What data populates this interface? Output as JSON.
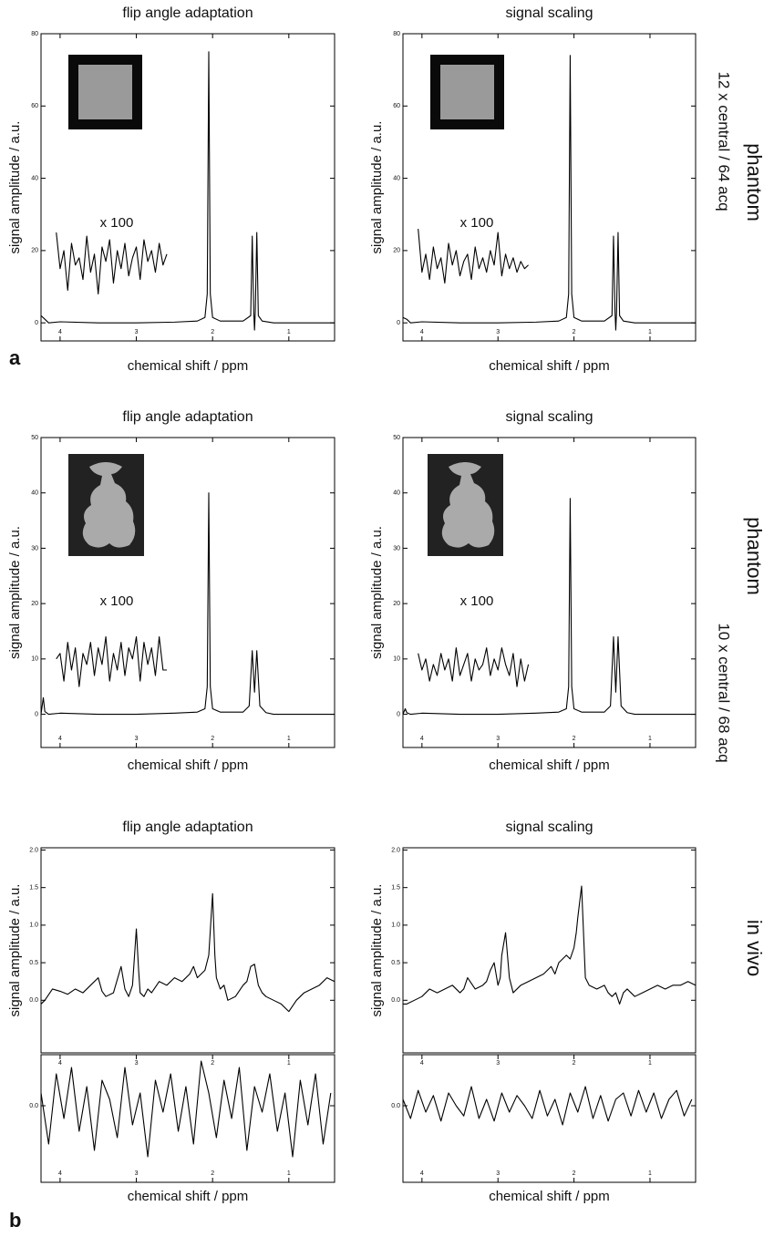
{
  "figure": {
    "panel_labels": [
      "a",
      "b"
    ],
    "row_labels": [
      "phantom",
      "12 x central / 64 acq",
      "phantom",
      "10 x central / 68 acq",
      "in vivo"
    ]
  },
  "chart_data": [
    {
      "type": "line",
      "title": "flip angle adaptation",
      "xlabel": "chemical shift / ppm",
      "ylabel": "signal amplitude / a.u.",
      "annotation": "x 100",
      "xlim": [
        4.25,
        0.4
      ],
      "xticks": [
        4,
        3,
        2,
        1
      ],
      "ylim": [
        -5,
        80
      ],
      "yticks": [
        0,
        20,
        40,
        60,
        80
      ],
      "series": [
        {
          "color": "#000000",
          "x": [
            4.25,
            4.2,
            4.15,
            4.0,
            3.5,
            3.0,
            2.5,
            2.2,
            2.1,
            2.07,
            2.05,
            2.03,
            2.0,
            1.9,
            1.6,
            1.5,
            1.48,
            1.46,
            1.45,
            1.44,
            1.42,
            1.4,
            1.35,
            1.2,
            0.8,
            0.4
          ],
          "values": [
            2,
            1,
            0,
            0.3,
            0,
            0,
            0.2,
            0.5,
            1.5,
            8,
            75,
            8,
            1.5,
            0.5,
            0.5,
            2,
            24,
            3,
            -2,
            3,
            25,
            2,
            0.5,
            0,
            0,
            0
          ]
        },
        {
          "color": "#000000",
          "x": [
            4.05,
            4.0,
            3.95,
            3.9,
            3.85,
            3.8,
            3.75,
            3.7,
            3.65,
            3.6,
            3.55,
            3.5,
            3.45,
            3.4,
            3.35,
            3.3,
            3.25,
            3.2,
            3.15,
            3.1,
            3.05,
            3.0,
            2.95,
            2.9,
            2.85,
            2.8,
            2.75,
            2.7,
            2.65,
            2.6
          ],
          "values": [
            25,
            15,
            20,
            9,
            22,
            16,
            18,
            12,
            24,
            14,
            19,
            8,
            21,
            17,
            23,
            11,
            20,
            15,
            22,
            13,
            18,
            21,
            12,
            23,
            17,
            20,
            14,
            22,
            16,
            19
          ]
        }
      ]
    },
    {
      "type": "line",
      "title": "signal scaling",
      "xlabel": "chemical shift / ppm",
      "ylabel": "signal amplitude / a.u.",
      "annotation": "x 100",
      "xlim": [
        4.25,
        0.4
      ],
      "xticks": [
        4,
        3,
        2,
        1
      ],
      "ylim": [
        -5,
        80
      ],
      "yticks": [
        0,
        20,
        40,
        60,
        80
      ],
      "series": [
        {
          "color": "#000000",
          "x": [
            4.25,
            4.2,
            4.15,
            4.0,
            3.5,
            3.0,
            2.5,
            2.2,
            2.1,
            2.07,
            2.05,
            2.03,
            2.0,
            1.9,
            1.6,
            1.5,
            1.48,
            1.46,
            1.45,
            1.44,
            1.42,
            1.4,
            1.35,
            1.2,
            0.8,
            0.4
          ],
          "values": [
            1.5,
            1,
            0,
            0.3,
            0,
            0,
            0.2,
            0.5,
            1.5,
            8,
            74,
            8,
            1.5,
            0.5,
            0.5,
            2,
            24,
            3,
            -2,
            3,
            25,
            2,
            0.5,
            0,
            0,
            0
          ]
        },
        {
          "color": "#000000",
          "x": [
            4.05,
            4.0,
            3.95,
            3.9,
            3.85,
            3.8,
            3.75,
            3.7,
            3.65,
            3.6,
            3.55,
            3.5,
            3.45,
            3.4,
            3.35,
            3.3,
            3.25,
            3.2,
            3.15,
            3.1,
            3.05,
            3.0,
            2.95,
            2.9,
            2.85,
            2.8,
            2.75,
            2.7,
            2.65,
            2.6
          ],
          "values": [
            26,
            14,
            19,
            12,
            21,
            15,
            18,
            11,
            22,
            16,
            20,
            13,
            17,
            19,
            12,
            21,
            15,
            18,
            14,
            20,
            16,
            25,
            13,
            19,
            15,
            18,
            14,
            17,
            15,
            16
          ]
        }
      ]
    },
    {
      "type": "line",
      "title": "flip angle adaptation",
      "xlabel": "chemical shift / ppm",
      "ylabel": "signal amplitude / a.u.",
      "annotation": "x 100",
      "xlim": [
        4.25,
        0.4
      ],
      "xticks": [
        4,
        3,
        2,
        1
      ],
      "ylim": [
        -6,
        50
      ],
      "yticks": [
        0,
        10,
        20,
        30,
        40,
        50
      ],
      "series": [
        {
          "color": "#000000",
          "x": [
            4.25,
            4.22,
            4.2,
            4.15,
            4.0,
            3.5,
            3.0,
            2.5,
            2.2,
            2.1,
            2.07,
            2.05,
            2.03,
            2.0,
            1.9,
            1.6,
            1.52,
            1.48,
            1.45,
            1.42,
            1.38,
            1.3,
            1.2,
            0.8,
            0.4
          ],
          "values": [
            0,
            3,
            0.5,
            0,
            0.2,
            0,
            0,
            0.2,
            0.4,
            1,
            5,
            40,
            5,
            1,
            0.4,
            0.4,
            1.5,
            11.5,
            4,
            11.5,
            1.5,
            0.3,
            0,
            0,
            0
          ]
        },
        {
          "color": "#000000",
          "x": [
            4.05,
            4.0,
            3.95,
            3.9,
            3.85,
            3.8,
            3.75,
            3.7,
            3.65,
            3.6,
            3.55,
            3.5,
            3.45,
            3.4,
            3.35,
            3.3,
            3.25,
            3.2,
            3.15,
            3.1,
            3.05,
            3.0,
            2.95,
            2.9,
            2.85,
            2.8,
            2.75,
            2.7,
            2.65,
            2.6
          ],
          "values": [
            10,
            11,
            6,
            13,
            8,
            12,
            5,
            11,
            9,
            13,
            7,
            12,
            9,
            14,
            6,
            11,
            8,
            13,
            7,
            12,
            10,
            14,
            6,
            13,
            9,
            12,
            7,
            14,
            8,
            8
          ]
        }
      ]
    },
    {
      "type": "line",
      "title": "signal scaling",
      "xlabel": "chemical shift / ppm",
      "ylabel": "signal amplitude / a.u.",
      "annotation": "x 100",
      "xlim": [
        4.25,
        0.4
      ],
      "xticks": [
        4,
        3,
        2,
        1
      ],
      "ylim": [
        -6,
        50
      ],
      "yticks": [
        0,
        10,
        20,
        30,
        40,
        50
      ],
      "series": [
        {
          "color": "#000000",
          "x": [
            4.25,
            4.22,
            4.2,
            4.15,
            4.0,
            3.5,
            3.0,
            2.5,
            2.2,
            2.1,
            2.07,
            2.05,
            2.03,
            2.0,
            1.9,
            1.6,
            1.52,
            1.48,
            1.45,
            1.42,
            1.38,
            1.3,
            1.2,
            0.8,
            0.4
          ],
          "values": [
            0,
            1,
            0.3,
            0,
            0.2,
            0,
            0,
            0.2,
            0.4,
            1,
            5,
            39,
            5,
            1,
            0.4,
            0.4,
            1.5,
            14,
            4,
            14,
            1.5,
            0.3,
            0,
            0,
            0
          ]
        },
        {
          "color": "#000000",
          "x": [
            4.05,
            4.0,
            3.95,
            3.9,
            3.85,
            3.8,
            3.75,
            3.7,
            3.65,
            3.6,
            3.55,
            3.5,
            3.45,
            3.4,
            3.35,
            3.3,
            3.25,
            3.2,
            3.15,
            3.1,
            3.05,
            3.0,
            2.95,
            2.9,
            2.85,
            2.8,
            2.75,
            2.7,
            2.65,
            2.6
          ],
          "values": [
            11,
            8,
            10,
            6,
            9,
            7,
            11,
            8,
            10,
            6,
            12,
            7,
            9,
            11,
            6,
            10,
            8,
            9,
            12,
            7,
            10,
            8,
            12,
            9,
            7,
            11,
            5,
            10,
            6,
            9
          ]
        }
      ]
    },
    {
      "type": "line",
      "title": "flip angle adaptation",
      "ylabel": "signal amplitude / a.u.",
      "xlim": [
        4.25,
        0.4
      ],
      "ylim": [
        -0.7,
        2.03
      ],
      "yticks": [
        {
          "value": 0,
          "label": "0.0"
        },
        0.5,
        {
          "value": 1,
          "label": "1.0"
        },
        1.5,
        {
          "value": 2,
          "label": "2.0"
        }
      ],
      "series": [
        {
          "color": "#000000",
          "x": [
            4.25,
            4.2,
            4.1,
            4.0,
            3.9,
            3.8,
            3.7,
            3.6,
            3.5,
            3.45,
            3.4,
            3.3,
            3.2,
            3.15,
            3.1,
            3.05,
            3.0,
            2.97,
            2.95,
            2.9,
            2.85,
            2.8,
            2.7,
            2.6,
            2.5,
            2.4,
            2.3,
            2.25,
            2.2,
            2.1,
            2.05,
            2.0,
            1.97,
            1.95,
            1.9,
            1.85,
            1.8,
            1.7,
            1.6,
            1.55,
            1.5,
            1.45,
            1.4,
            1.35,
            1.3,
            1.2,
            1.1,
            1.0,
            0.9,
            0.8,
            0.7,
            0.6,
            0.5,
            0.4
          ],
          "values": [
            -0.05,
            0.0,
            0.15,
            0.12,
            0.08,
            0.15,
            0.1,
            0.2,
            0.3,
            0.12,
            0.05,
            0.1,
            0.45,
            0.15,
            0.05,
            0.2,
            0.95,
            0.4,
            0.1,
            0.05,
            0.15,
            0.1,
            0.25,
            0.2,
            0.3,
            0.25,
            0.35,
            0.45,
            0.3,
            0.4,
            0.6,
            1.42,
            0.6,
            0.3,
            0.15,
            0.2,
            0.0,
            0.05,
            0.2,
            0.25,
            0.45,
            0.48,
            0.2,
            0.1,
            0.05,
            0.0,
            -0.05,
            -0.15,
            0.0,
            0.1,
            0.15,
            0.2,
            0.3,
            0.25
          ]
        }
      ]
    },
    {
      "type": "line",
      "title": "signal scaling",
      "ylabel": "signal amplitude / a.u.",
      "xlim": [
        4.25,
        0.4
      ],
      "ylim": [
        -0.7,
        2.03
      ],
      "yticks": [
        {
          "value": 0,
          "label": "0.0"
        },
        0.5,
        {
          "value": 1,
          "label": "1.0"
        },
        1.5,
        {
          "value": 2,
          "label": "2.0"
        }
      ],
      "series": [
        {
          "color": "#000000",
          "x": [
            4.25,
            4.2,
            4.1,
            4.0,
            3.9,
            3.8,
            3.7,
            3.6,
            3.5,
            3.45,
            3.4,
            3.3,
            3.2,
            3.15,
            3.1,
            3.05,
            3.0,
            2.97,
            2.95,
            2.9,
            2.85,
            2.8,
            2.7,
            2.6,
            2.5,
            2.4,
            2.3,
            2.25,
            2.2,
            2.1,
            2.05,
            2.0,
            1.97,
            1.95,
            1.9,
            1.85,
            1.8,
            1.7,
            1.6,
            1.55,
            1.5,
            1.45,
            1.4,
            1.35,
            1.3,
            1.2,
            1.1,
            1.0,
            0.9,
            0.8,
            0.7,
            0.6,
            0.5,
            0.4
          ],
          "values": [
            -0.05,
            -0.05,
            0.0,
            0.05,
            0.15,
            0.1,
            0.15,
            0.2,
            0.1,
            0.15,
            0.3,
            0.15,
            0.2,
            0.25,
            0.4,
            0.5,
            0.2,
            0.3,
            0.6,
            0.9,
            0.3,
            0.1,
            0.2,
            0.25,
            0.3,
            0.35,
            0.45,
            0.35,
            0.5,
            0.6,
            0.55,
            0.7,
            0.9,
            1.1,
            1.52,
            0.3,
            0.2,
            0.15,
            0.2,
            0.1,
            0.05,
            0.1,
            -0.05,
            0.1,
            0.15,
            0.05,
            0.1,
            0.15,
            0.2,
            0.15,
            0.2,
            0.2,
            0.25,
            0.2
          ]
        }
      ]
    },
    {
      "type": "line",
      "xlabel": "chemical shift / ppm",
      "xlim": [
        4.25,
        0.4
      ],
      "xticks": [
        4,
        3,
        2,
        1
      ],
      "ylim": [
        -0.6,
        0.4
      ],
      "yticks": [
        {
          "value": 0,
          "label": "0.0"
        }
      ],
      "series": [
        {
          "color": "#000000",
          "x": [
            4.25,
            4.15,
            4.05,
            3.95,
            3.85,
            3.75,
            3.65,
            3.55,
            3.45,
            3.35,
            3.25,
            3.15,
            3.05,
            2.95,
            2.85,
            2.75,
            2.65,
            2.55,
            2.45,
            2.35,
            2.25,
            2.15,
            2.05,
            1.95,
            1.85,
            1.75,
            1.65,
            1.55,
            1.45,
            1.35,
            1.25,
            1.15,
            1.05,
            0.95,
            0.85,
            0.75,
            0.65,
            0.55,
            0.45
          ],
          "values": [
            0.1,
            -0.3,
            0.25,
            -0.1,
            0.3,
            -0.2,
            0.15,
            -0.35,
            0.2,
            0.05,
            -0.25,
            0.3,
            -0.15,
            0.1,
            -0.4,
            0.2,
            -0.05,
            0.25,
            -0.2,
            0.15,
            -0.3,
            0.35,
            0.1,
            -0.25,
            0.2,
            -0.1,
            0.3,
            -0.35,
            0.15,
            -0.05,
            0.25,
            -0.2,
            0.1,
            -0.4,
            0.2,
            -0.15,
            0.25,
            -0.3,
            0.1
          ]
        }
      ]
    },
    {
      "type": "line",
      "xlabel": "chemical shift / ppm",
      "xlim": [
        4.25,
        0.4
      ],
      "xticks": [
        4,
        3,
        2,
        1
      ],
      "ylim": [
        -0.6,
        0.4
      ],
      "yticks": [
        {
          "value": 0,
          "label": "0.0"
        }
      ],
      "series": [
        {
          "color": "#000000",
          "x": [
            4.25,
            4.15,
            4.05,
            3.95,
            3.85,
            3.75,
            3.65,
            3.55,
            3.45,
            3.35,
            3.25,
            3.15,
            3.05,
            2.95,
            2.85,
            2.75,
            2.65,
            2.55,
            2.45,
            2.35,
            2.25,
            2.15,
            2.05,
            1.95,
            1.85,
            1.75,
            1.65,
            1.55,
            1.45,
            1.35,
            1.25,
            1.15,
            1.05,
            0.95,
            0.85,
            0.75,
            0.65,
            0.55,
            0.45
          ],
          "values": [
            0.05,
            -0.1,
            0.12,
            -0.05,
            0.08,
            -0.12,
            0.1,
            0.0,
            -0.08,
            0.15,
            -0.1,
            0.05,
            -0.12,
            0.1,
            -0.05,
            0.08,
            0.0,
            -0.1,
            0.12,
            -0.08,
            0.05,
            -0.15,
            0.1,
            -0.05,
            0.15,
            -0.1,
            0.08,
            -0.12,
            0.05,
            0.1,
            -0.08,
            0.12,
            -0.05,
            0.1,
            -0.1,
            0.05,
            0.12,
            -0.08,
            0.05
          ]
        }
      ]
    }
  ]
}
